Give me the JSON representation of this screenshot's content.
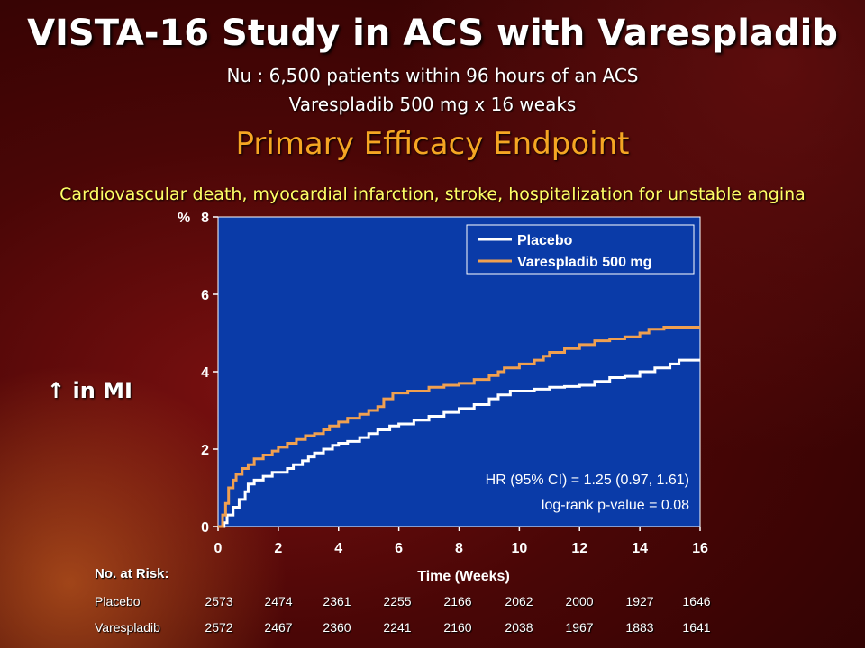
{
  "slide": {
    "title": "VISTA-16 Study in ACS with Varespladib",
    "subtitle1": "Nu : 6,500 patients within 96 hours of an ACS",
    "subtitle2": "Varespladib 500 mg x 16 weaks",
    "endpoint": "Primary Efficacy Endpoint",
    "composite": "Cardiovascular death, myocardial infarction, stroke, hospitalization for unstable angina",
    "side_note": "↑ in MI"
  },
  "colors": {
    "plot_bg": "#0a3ba8",
    "placebo": "#ffffff",
    "varespladib": "#f0a050",
    "axis_text": "#ffffff"
  },
  "chart_data": {
    "type": "line",
    "ylabel": "%",
    "xlabel": "Time (Weeks)",
    "xlim": [
      0,
      16
    ],
    "ylim": [
      0,
      8
    ],
    "xticks": [
      "0",
      "2",
      "4",
      "6",
      "8",
      "10",
      "12",
      "14",
      "16"
    ],
    "yticks": [
      "0",
      "2",
      "4",
      "6",
      "8"
    ],
    "legend_position": "top-right",
    "series": [
      {
        "name": "Placebo",
        "color": "#ffffff",
        "points": [
          [
            0,
            0
          ],
          [
            0.2,
            0.1
          ],
          [
            0.3,
            0.3
          ],
          [
            0.5,
            0.5
          ],
          [
            0.7,
            0.7
          ],
          [
            0.9,
            0.9
          ],
          [
            1.0,
            1.1
          ],
          [
            1.2,
            1.2
          ],
          [
            1.5,
            1.3
          ],
          [
            1.8,
            1.4
          ],
          [
            2.3,
            1.5
          ],
          [
            2.5,
            1.6
          ],
          [
            2.8,
            1.7
          ],
          [
            3.0,
            1.8
          ],
          [
            3.2,
            1.9
          ],
          [
            3.5,
            2.0
          ],
          [
            3.8,
            2.1
          ],
          [
            4.0,
            2.15
          ],
          [
            4.3,
            2.2
          ],
          [
            4.7,
            2.3
          ],
          [
            5.0,
            2.4
          ],
          [
            5.3,
            2.5
          ],
          [
            5.7,
            2.6
          ],
          [
            6.0,
            2.65
          ],
          [
            6.5,
            2.75
          ],
          [
            7.0,
            2.85
          ],
          [
            7.5,
            2.95
          ],
          [
            8.0,
            3.05
          ],
          [
            8.5,
            3.15
          ],
          [
            9.0,
            3.3
          ],
          [
            9.3,
            3.4
          ],
          [
            9.7,
            3.5
          ],
          [
            10.5,
            3.55
          ],
          [
            11.0,
            3.6
          ],
          [
            11.5,
            3.62
          ],
          [
            12.0,
            3.65
          ],
          [
            12.5,
            3.75
          ],
          [
            13.0,
            3.85
          ],
          [
            13.5,
            3.88
          ],
          [
            14.0,
            4.0
          ],
          [
            14.5,
            4.1
          ],
          [
            15.0,
            4.2
          ],
          [
            15.3,
            4.3
          ],
          [
            16,
            4.3
          ]
        ]
      },
      {
        "name": "Varespladib 500 mg",
        "color": "#f0a050",
        "points": [
          [
            0,
            0
          ],
          [
            0.15,
            0.3
          ],
          [
            0.25,
            0.6
          ],
          [
            0.35,
            1.0
          ],
          [
            0.5,
            1.2
          ],
          [
            0.6,
            1.35
          ],
          [
            0.8,
            1.5
          ],
          [
            1.0,
            1.6
          ],
          [
            1.2,
            1.75
          ],
          [
            1.5,
            1.85
          ],
          [
            1.8,
            1.95
          ],
          [
            2.0,
            2.05
          ],
          [
            2.3,
            2.15
          ],
          [
            2.6,
            2.25
          ],
          [
            2.9,
            2.35
          ],
          [
            3.2,
            2.4
          ],
          [
            3.5,
            2.5
          ],
          [
            3.7,
            2.6
          ],
          [
            4.0,
            2.7
          ],
          [
            4.3,
            2.8
          ],
          [
            4.7,
            2.9
          ],
          [
            5.0,
            3.0
          ],
          [
            5.3,
            3.1
          ],
          [
            5.5,
            3.3
          ],
          [
            5.8,
            3.45
          ],
          [
            6.3,
            3.5
          ],
          [
            7.0,
            3.6
          ],
          [
            7.5,
            3.65
          ],
          [
            8.0,
            3.7
          ],
          [
            8.5,
            3.8
          ],
          [
            9.0,
            3.9
          ],
          [
            9.3,
            4.0
          ],
          [
            9.5,
            4.1
          ],
          [
            10.0,
            4.2
          ],
          [
            10.5,
            4.3
          ],
          [
            10.8,
            4.4
          ],
          [
            11.0,
            4.5
          ],
          [
            11.5,
            4.6
          ],
          [
            12.0,
            4.7
          ],
          [
            12.5,
            4.8
          ],
          [
            13.0,
            4.85
          ],
          [
            13.5,
            4.9
          ],
          [
            14.0,
            5.0
          ],
          [
            14.3,
            5.1
          ],
          [
            14.8,
            5.15
          ],
          [
            16,
            5.15
          ]
        ]
      }
    ],
    "annotations": [
      "HR (95% CI) = 1.25 (0.97, 1.61)",
      "log-rank p-value = 0.08"
    ]
  },
  "risk_table": {
    "header": "No. at Risk:",
    "weeks": [
      0,
      2,
      4,
      6,
      8,
      10,
      12,
      14,
      16
    ],
    "rows": [
      {
        "label": "Placebo",
        "values": [
          "2573",
          "2474",
          "2361",
          "2255",
          "2166",
          "2062",
          "2000",
          "1927",
          "1646"
        ]
      },
      {
        "label": "Varespladib",
        "values": [
          "2572",
          "2467",
          "2360",
          "2241",
          "2160",
          "2038",
          "1967",
          "1883",
          "1641"
        ]
      }
    ]
  }
}
